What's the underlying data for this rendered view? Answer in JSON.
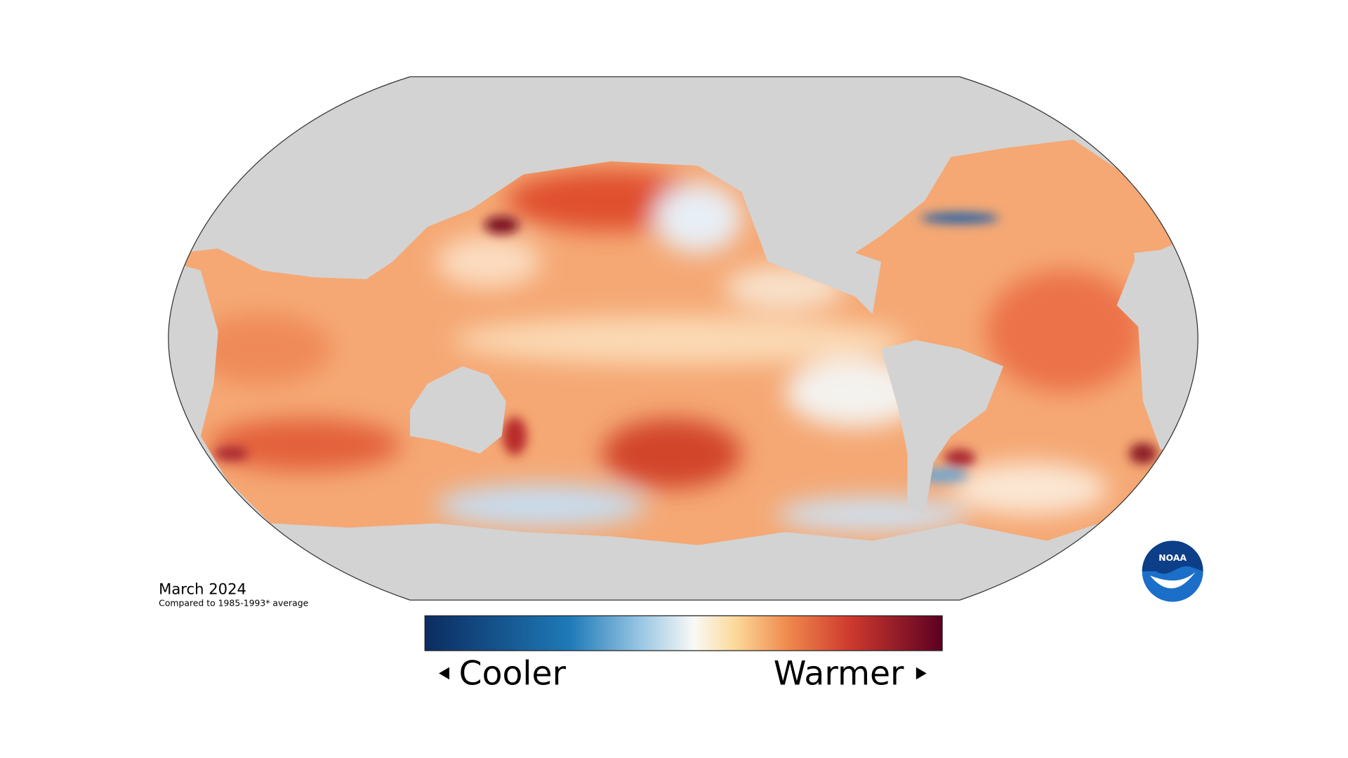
{
  "date_label": "March 2024",
  "baseline_note": "Compared to 1985-1993* average",
  "legend": {
    "low_label": "Cooler",
    "high_label": "Warmer"
  },
  "logo_text": "NOAA"
}
